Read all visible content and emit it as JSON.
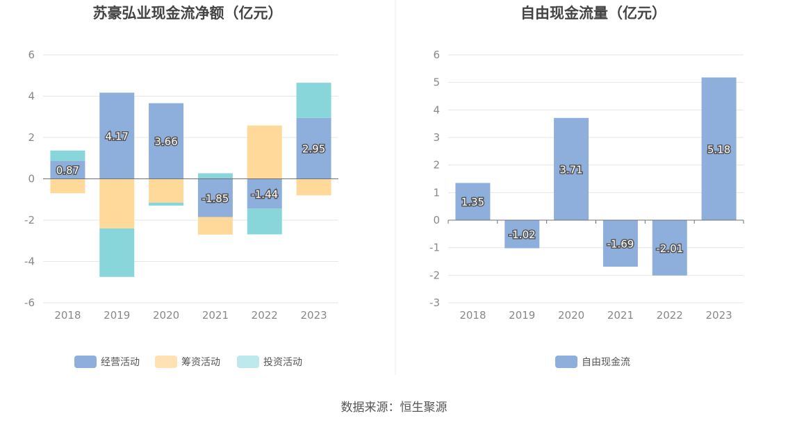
{
  "source": "数据来源：恒生聚源",
  "chart_data": [
    {
      "type": "bar",
      "stacked": true,
      "title": "苏豪弘业现金流净额（亿元）",
      "categories": [
        "2018",
        "2019",
        "2020",
        "2021",
        "2022",
        "2023"
      ],
      "ylim": [
        -6,
        6
      ],
      "yticks": [
        6,
        4,
        2,
        0,
        -2,
        -4,
        -6
      ],
      "grid": true,
      "legend_position": "bottom",
      "series": [
        {
          "name": "经营活动",
          "color": "#8eaedc",
          "values": [
            0.87,
            4.17,
            3.66,
            -1.85,
            -1.44,
            2.95
          ],
          "labels": [
            "0.87",
            "4.17",
            "3.66",
            "-1.85",
            "-1.44",
            "2.95"
          ]
        },
        {
          "name": "筹资活动",
          "color": "#ffd99a",
          "values": [
            -0.7,
            -2.4,
            -1.15,
            -0.85,
            2.58,
            -0.8
          ]
        },
        {
          "name": "投资活动",
          "color": "#88d6da",
          "values": [
            0.5,
            -2.35,
            -0.15,
            0.27,
            -1.25,
            1.7
          ]
        }
      ],
      "legend_colors": [
        "#8eaedc",
        "#ffe1b3",
        "#bde9ec"
      ]
    },
    {
      "type": "bar",
      "title": "自由现金流量（亿元）",
      "categories": [
        "2018",
        "2019",
        "2020",
        "2021",
        "2022",
        "2023"
      ],
      "ylim": [
        -3,
        6
      ],
      "yticks": [
        6,
        5,
        4,
        3,
        2,
        1,
        0,
        -1,
        -2,
        -3
      ],
      "grid": true,
      "legend_position": "bottom",
      "series": [
        {
          "name": "自由现金流",
          "color": "#8eaedc",
          "values": [
            1.35,
            -1.02,
            3.71,
            -1.69,
            -2.01,
            5.18
          ],
          "labels": [
            "1.35",
            "-1.02",
            "3.71",
            "-1.69",
            "-2.01",
            "5.18"
          ]
        }
      ],
      "legend_colors": [
        "#8eaedc"
      ]
    }
  ]
}
